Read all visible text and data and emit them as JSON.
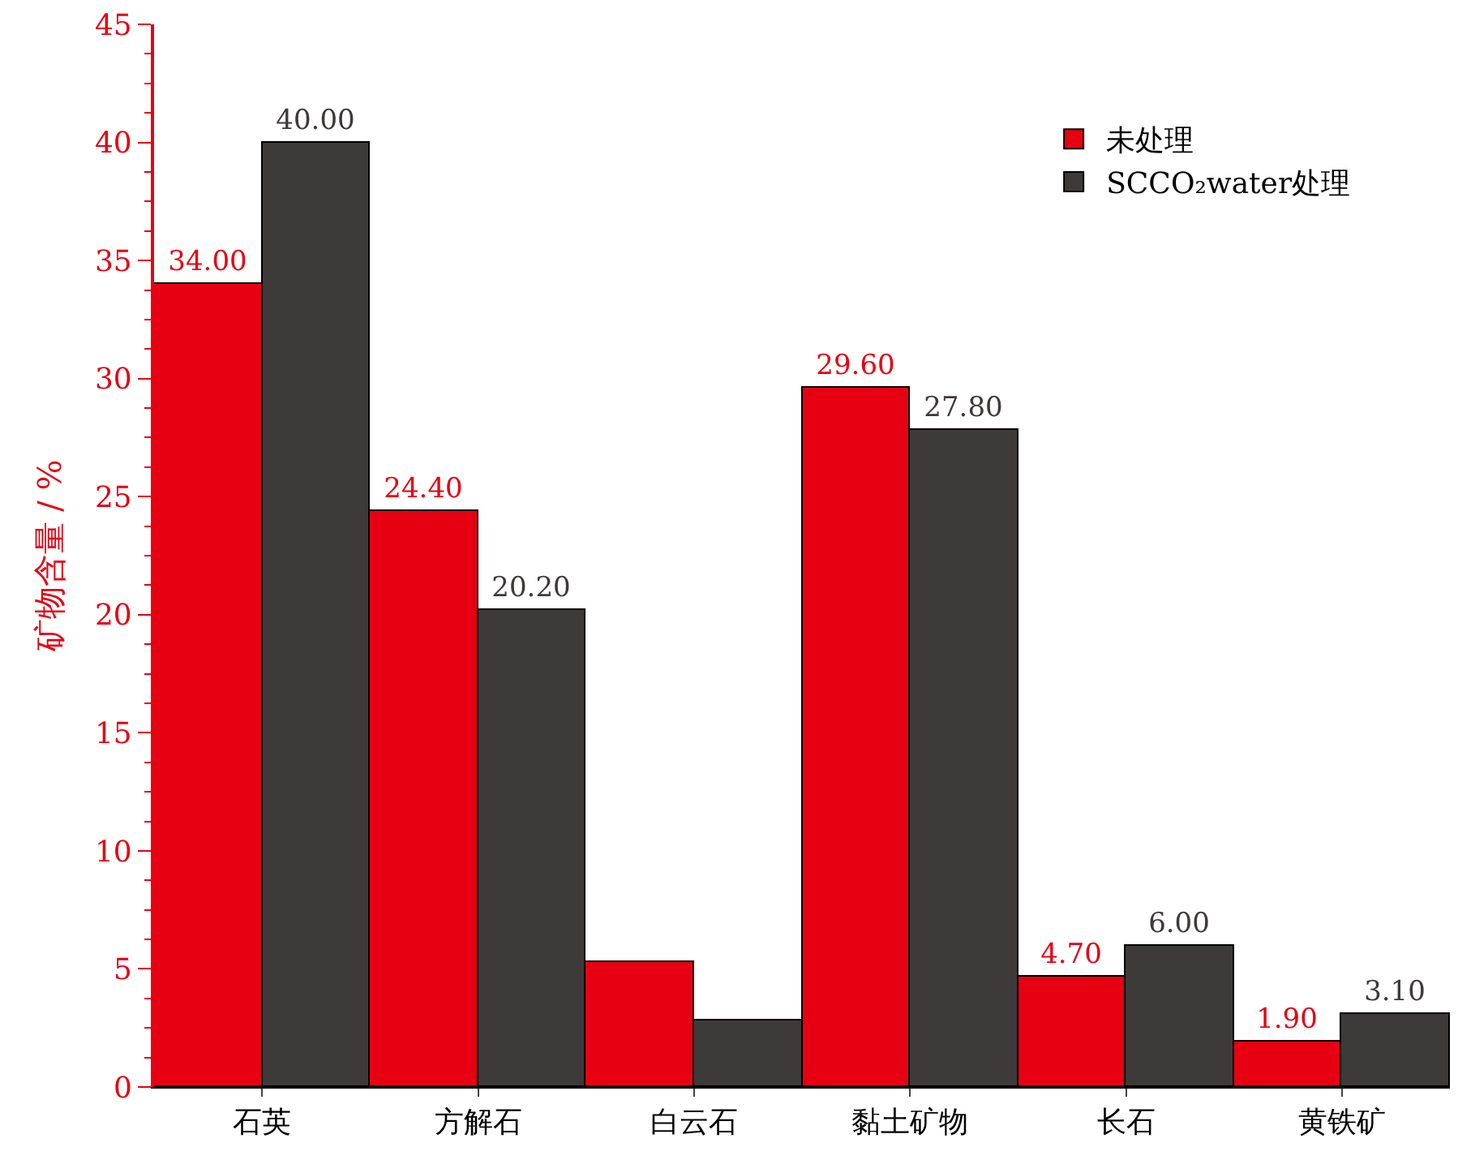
{
  "chart_data": {
    "type": "bar",
    "ylabel": "矿物含量 / %",
    "categories": [
      "石英",
      "方解石",
      "白云石",
      "黏土矿物",
      "长石",
      "黄铁矿"
    ],
    "series": [
      {
        "name": "未处理",
        "color": "#e60012",
        "values": [
          34.0,
          24.4,
          5.3,
          29.6,
          4.7,
          1.9
        ],
        "value_labels": [
          "34.00",
          "24.40",
          null,
          "29.60",
          "4.70",
          "1.90"
        ]
      },
      {
        "name": "SCCO₂water处理",
        "color": "#3e3a39",
        "values": [
          40.0,
          20.2,
          2.8,
          27.8,
          6.0,
          3.1
        ],
        "value_labels": [
          "40.00",
          "20.20",
          null,
          "27.80",
          "6.00",
          "3.10"
        ]
      }
    ],
    "ylim": [
      0,
      45
    ],
    "yticks": [
      0,
      5,
      10,
      15,
      20,
      25,
      30,
      35,
      40,
      45
    ],
    "legend": "top right"
  }
}
